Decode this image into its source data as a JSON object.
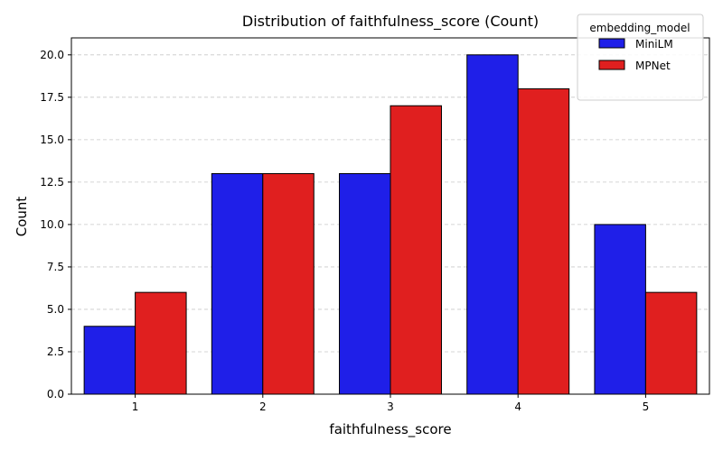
{
  "chart_data": {
    "type": "bar",
    "title": "Distribution of faithfulness_score (Count)",
    "xlabel": "faithfulness_score",
    "ylabel": "Count",
    "categories": [
      "1",
      "2",
      "3",
      "4",
      "5"
    ],
    "series": [
      {
        "name": "MiniLM",
        "values": [
          4,
          13,
          13,
          20,
          10
        ],
        "color": "#1f1fe8"
      },
      {
        "name": "MPNet",
        "values": [
          6,
          13,
          17,
          18,
          6
        ],
        "color": "#e01f1f"
      }
    ],
    "ylim": [
      0,
      21
    ],
    "yticks": [
      "0.0",
      "2.5",
      "5.0",
      "7.5",
      "10.0",
      "12.5",
      "15.0",
      "17.5",
      "20.0"
    ],
    "grid": "y-dashed",
    "legend": {
      "title": "embedding_model",
      "placement": "top-right"
    }
  }
}
